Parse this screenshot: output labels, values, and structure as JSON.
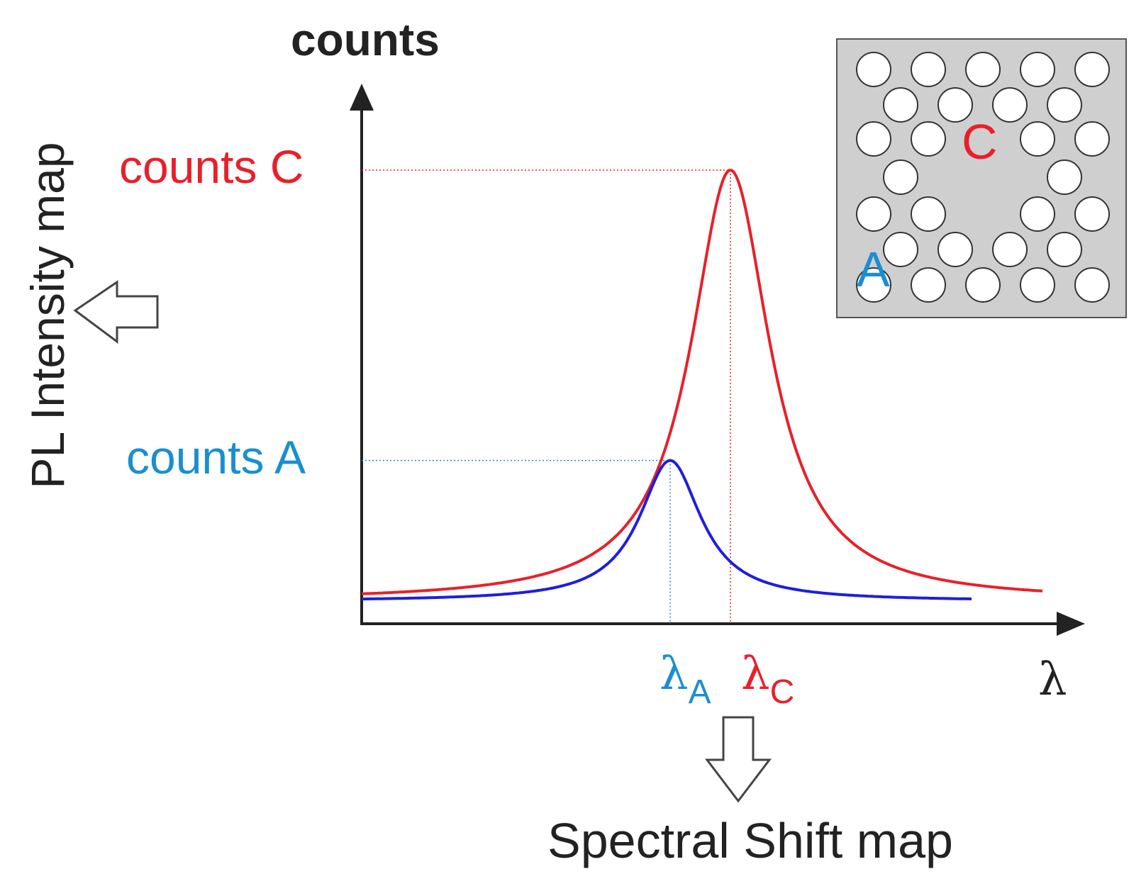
{
  "diagram": {
    "y_axis_label": "counts",
    "x_axis_label": "λ",
    "left_label": "PL Intensity map",
    "bottom_label": "Spectral Shift map",
    "counts_c_label": "counts C",
    "counts_a_label": "counts A",
    "lambda_a": {
      "symbol": "λ",
      "subscript": "A"
    },
    "lambda_c": {
      "symbol": "λ",
      "subscript": "C"
    },
    "inset": {
      "label_c": "C",
      "label_a": "A"
    }
  },
  "colors": {
    "red": "#e8202a",
    "blue": "#1e1ee0",
    "blue_text": "#1a8fd0",
    "axis": "#222222",
    "inset_bg": "#cfcfcf",
    "text": "#222222"
  },
  "chart_data": {
    "type": "line",
    "series": [
      {
        "name": "C",
        "peak_lambda": 0.52,
        "peak_counts": 1.0,
        "hwhm": 0.068,
        "baseline": 0.05,
        "x_range": [
          0.0,
          0.96
        ]
      },
      {
        "name": "A",
        "peak_lambda": 0.435,
        "peak_counts": 0.36,
        "hwhm": 0.053,
        "baseline": 0.05,
        "x_range": [
          0.0,
          0.86
        ]
      }
    ]
  }
}
